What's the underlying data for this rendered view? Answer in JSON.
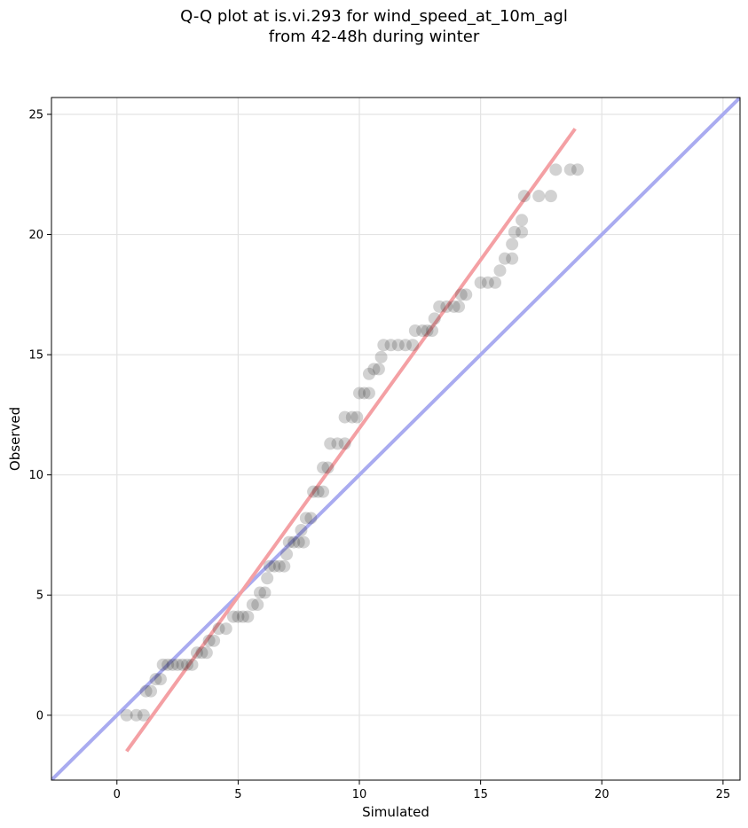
{
  "chart_data": {
    "type": "scatter",
    "title_line1": "Q-Q plot at is.vi.293 for wind_speed_at_10m_agl",
    "title_line2": "from 42-48h during winter",
    "xlabel": "Simulated",
    "ylabel": "Observed",
    "xlim": [
      -2.7,
      25.7
    ],
    "ylim": [
      -2.7,
      25.7
    ],
    "xticks": [
      "0",
      "5",
      "10",
      "15",
      "20",
      "25"
    ],
    "yticks": [
      "0",
      "5",
      "10",
      "15",
      "20",
      "25"
    ],
    "grid": true,
    "colors": {
      "points": "#333333",
      "fit_line": "#f4a0a4",
      "identity_line": "#a9abf0"
    },
    "identity_line": {
      "x": [
        -2.7,
        25.7
      ],
      "y": [
        -2.7,
        25.7
      ]
    },
    "fit_line": {
      "x": [
        0.4,
        18.9
      ],
      "y": [
        -1.5,
        24.4
      ]
    },
    "points": [
      [
        0.4,
        0.0
      ],
      [
        0.8,
        0.0
      ],
      [
        1.1,
        0.0
      ],
      [
        1.2,
        1.0
      ],
      [
        1.4,
        1.0
      ],
      [
        1.6,
        1.5
      ],
      [
        1.8,
        1.5
      ],
      [
        1.9,
        2.1
      ],
      [
        2.1,
        2.1
      ],
      [
        2.3,
        2.1
      ],
      [
        2.5,
        2.1
      ],
      [
        2.7,
        2.1
      ],
      [
        2.9,
        2.1
      ],
      [
        3.1,
        2.1
      ],
      [
        3.3,
        2.6
      ],
      [
        3.5,
        2.6
      ],
      [
        3.7,
        2.6
      ],
      [
        3.8,
        3.1
      ],
      [
        4.0,
        3.1
      ],
      [
        4.2,
        3.6
      ],
      [
        4.5,
        3.6
      ],
      [
        4.8,
        4.1
      ],
      [
        5.0,
        4.1
      ],
      [
        5.2,
        4.1
      ],
      [
        5.4,
        4.1
      ],
      [
        5.6,
        4.6
      ],
      [
        5.8,
        4.6
      ],
      [
        5.9,
        5.1
      ],
      [
        6.1,
        5.1
      ],
      [
        6.2,
        5.7
      ],
      [
        6.3,
        6.2
      ],
      [
        6.5,
        6.2
      ],
      [
        6.7,
        6.2
      ],
      [
        6.9,
        6.2
      ],
      [
        7.0,
        6.7
      ],
      [
        7.1,
        7.2
      ],
      [
        7.3,
        7.2
      ],
      [
        7.5,
        7.2
      ],
      [
        7.7,
        7.2
      ],
      [
        7.6,
        7.7
      ],
      [
        7.8,
        8.2
      ],
      [
        8.0,
        8.2
      ],
      [
        8.1,
        9.3
      ],
      [
        8.3,
        9.3
      ],
      [
        8.5,
        9.3
      ],
      [
        8.5,
        10.3
      ],
      [
        8.7,
        10.3
      ],
      [
        8.8,
        11.3
      ],
      [
        9.1,
        11.3
      ],
      [
        9.4,
        11.3
      ],
      [
        9.4,
        12.4
      ],
      [
        9.7,
        12.4
      ],
      [
        9.9,
        12.4
      ],
      [
        10.0,
        13.4
      ],
      [
        10.2,
        13.4
      ],
      [
        10.4,
        13.4
      ],
      [
        10.4,
        14.2
      ],
      [
        10.6,
        14.4
      ],
      [
        10.8,
        14.4
      ],
      [
        10.9,
        14.9
      ],
      [
        11.0,
        15.4
      ],
      [
        11.3,
        15.4
      ],
      [
        11.6,
        15.4
      ],
      [
        11.9,
        15.4
      ],
      [
        12.2,
        15.4
      ],
      [
        12.3,
        16.0
      ],
      [
        12.6,
        16.0
      ],
      [
        12.8,
        16.0
      ],
      [
        13.0,
        16.0
      ],
      [
        13.1,
        16.5
      ],
      [
        13.3,
        17.0
      ],
      [
        13.6,
        17.0
      ],
      [
        13.9,
        17.0
      ],
      [
        14.1,
        17.0
      ],
      [
        14.2,
        17.5
      ],
      [
        14.4,
        17.5
      ],
      [
        15.0,
        18.0
      ],
      [
        15.3,
        18.0
      ],
      [
        15.6,
        18.0
      ],
      [
        15.8,
        18.5
      ],
      [
        16.0,
        19.0
      ],
      [
        16.3,
        19.0
      ],
      [
        16.3,
        19.6
      ],
      [
        16.4,
        20.1
      ],
      [
        16.7,
        20.1
      ],
      [
        16.7,
        20.6
      ],
      [
        16.8,
        21.6
      ],
      [
        17.4,
        21.6
      ],
      [
        17.9,
        21.6
      ],
      [
        18.1,
        22.7
      ],
      [
        18.7,
        22.7
      ],
      [
        19.0,
        22.7
      ]
    ]
  }
}
